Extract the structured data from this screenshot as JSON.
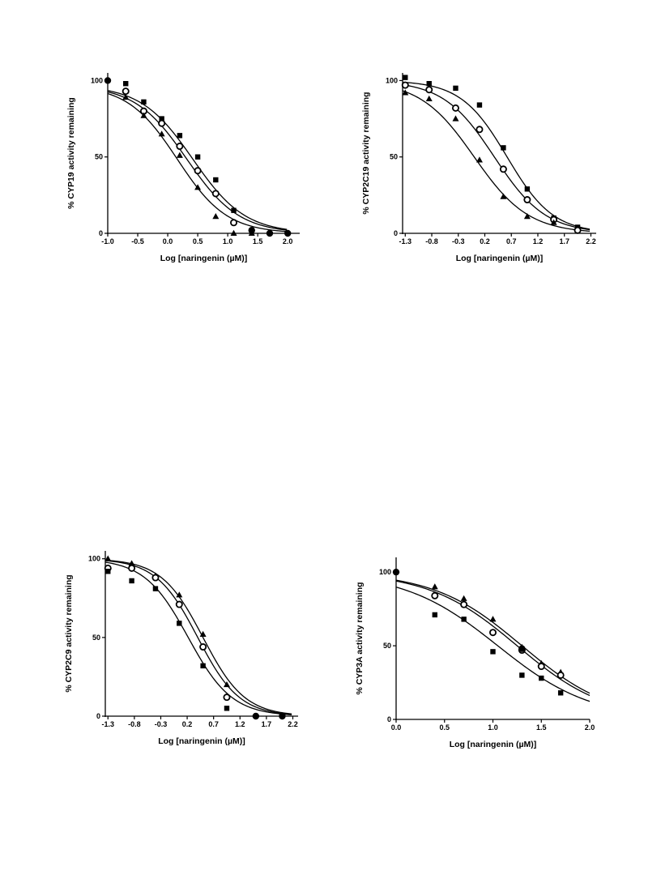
{
  "chart_data": [
    {
      "type": "scatter",
      "title": "",
      "xlabel": "Log [naringenin (µM)]",
      "ylabel": "% CYP19 activity remaining",
      "xlim": [
        -1.0,
        2.2
      ],
      "ylim": [
        0,
        105
      ],
      "xticks": [
        -1.0,
        -0.5,
        0.0,
        0.5,
        1.0,
        1.5,
        2.0
      ],
      "xtick_labels": [
        "-1.0",
        "-0.5",
        "0.0",
        "0.5",
        "1.0",
        "1.5",
        "2.0"
      ],
      "yticks": [
        0,
        50,
        100
      ],
      "ytick_labels": [
        "0",
        "50",
        "100"
      ],
      "grid": false,
      "legend": "none",
      "series": [
        {
          "marker": "square",
          "x": [
            -0.7,
            -0.4,
            -0.1,
            0.2,
            0.5,
            0.8,
            1.1
          ],
          "y": [
            98,
            86,
            75,
            64,
            50,
            35,
            15
          ]
        },
        {
          "marker": "open-circle",
          "x": [
            -0.7,
            -0.4,
            -0.1,
            0.2,
            0.5,
            0.8,
            1.1
          ],
          "y": [
            93,
            80,
            72,
            57,
            41,
            26,
            7
          ]
        },
        {
          "marker": "triangle",
          "x": [
            -0.7,
            -0.4,
            -0.1,
            0.2,
            0.5,
            0.8,
            1.1,
            1.4
          ],
          "y": [
            89,
            77,
            65,
            51,
            30,
            11,
            0,
            0
          ]
        },
        {
          "marker": "filled-circle",
          "x": [
            -1.0,
            1.4,
            1.7,
            2.0
          ],
          "y": [
            100,
            2,
            0,
            0
          ]
        }
      ],
      "fits": [
        {
          "top": 97,
          "logic50": 0.42,
          "hill": 1.0
        },
        {
          "top": 97,
          "logic50": 0.32,
          "hill": 1.0
        },
        {
          "top": 97,
          "logic50": 0.16,
          "hill": 1.05
        }
      ]
    },
    {
      "type": "scatter",
      "title": "",
      "xlabel": "Log [naringenin (µM)]",
      "ylabel": "% CYP2C19 activity remaining",
      "xlim": [
        -1.35,
        2.3
      ],
      "ylim": [
        0,
        105
      ],
      "xticks": [
        -1.3,
        -0.8,
        -0.3,
        0.2,
        0.7,
        1.2,
        1.7,
        2.2
      ],
      "xtick_labels": [
        "-1.3",
        "-0.8",
        "-0.3",
        "0.2",
        "0.7",
        "1.2",
        "1.7",
        "2.2"
      ],
      "yticks": [
        0,
        50,
        100
      ],
      "ytick_labels": [
        "0",
        "50",
        "100"
      ],
      "grid": false,
      "legend": "none",
      "series": [
        {
          "marker": "square",
          "x": [
            -1.3,
            -0.85,
            -0.35,
            0.1,
            0.55,
            1.0,
            1.5,
            1.95
          ],
          "y": [
            102,
            98,
            95,
            84,
            56,
            29,
            10,
            4
          ]
        },
        {
          "marker": "open-circle",
          "x": [
            -1.3,
            -0.85,
            -0.35,
            0.1,
            0.55,
            1.0,
            1.5,
            1.95
          ],
          "y": [
            97,
            94,
            82,
            68,
            42,
            22,
            9,
            2
          ]
        },
        {
          "marker": "triangle",
          "x": [
            -1.3,
            -0.85,
            -0.35,
            0.1,
            0.55,
            1.0,
            1.5
          ],
          "y": [
            92,
            88,
            75,
            48,
            24,
            11,
            7
          ]
        }
      ],
      "fits": [
        {
          "top": 100,
          "logic50": 0.62,
          "hill": 1.0
        },
        {
          "top": 100,
          "logic50": 0.38,
          "hill": 0.9
        },
        {
          "top": 100,
          "logic50": 0.0,
          "hill": 0.85
        }
      ]
    },
    {
      "type": "scatter",
      "title": "",
      "xlabel": "Log [naringenin (µM)]",
      "ylabel": "% CYP2C9 activity remaining",
      "xlim": [
        -1.35,
        2.3
      ],
      "ylim": [
        0,
        105
      ],
      "xticks": [
        -1.3,
        -0.8,
        -0.3,
        0.2,
        0.7,
        1.2,
        1.7,
        2.2
      ],
      "xtick_labels": [
        "-1.3",
        "-0.8",
        "-0.3",
        "0.2",
        "0.7",
        "1.2",
        "1.7",
        "2.2"
      ],
      "yticks": [
        0,
        50,
        100
      ],
      "ytick_labels": [
        "0",
        "50",
        "100"
      ],
      "grid": false,
      "legend": "none",
      "series": [
        {
          "marker": "triangle",
          "x": [
            -1.3,
            -0.85,
            -0.4,
            0.05,
            0.5,
            0.95
          ],
          "y": [
            100,
            97,
            89,
            77,
            52,
            20
          ]
        },
        {
          "marker": "open-circle",
          "x": [
            -1.3,
            -0.85,
            -0.4,
            0.05,
            0.5,
            0.95
          ],
          "y": [
            94,
            94,
            88,
            71,
            44,
            12
          ]
        },
        {
          "marker": "square",
          "x": [
            -1.3,
            -0.85,
            -0.4,
            0.05,
            0.5,
            0.95
          ],
          "y": [
            92,
            86,
            81,
            59,
            32,
            5
          ]
        },
        {
          "marker": "filled-circle",
          "x": [
            1.5,
            2.0
          ],
          "y": [
            0,
            0
          ]
        }
      ],
      "fits": [
        {
          "top": 100,
          "logic50": 0.5,
          "hill": 1.1
        },
        {
          "top": 100,
          "logic50": 0.4,
          "hill": 1.1
        },
        {
          "top": 100,
          "logic50": 0.22,
          "hill": 1.05
        }
      ]
    },
    {
      "type": "scatter",
      "title": "",
      "xlabel": "Log [naringenin (µM)]",
      "ylabel": "% CYP3A activity remaining",
      "xlim": [
        0,
        2.0
      ],
      "ylim": [
        0,
        110
      ],
      "xticks": [
        0.0,
        0.5,
        1.0,
        1.5,
        2.0
      ],
      "xtick_labels": [
        "0.0",
        "0.5",
        "1.0",
        "1.5",
        "2.0"
      ],
      "yticks": [
        0,
        50,
        100
      ],
      "ytick_labels": [
        "0",
        "50",
        "100"
      ],
      "grid": false,
      "legend": "none",
      "series": [
        {
          "marker": "triangle",
          "x": [
            0.4,
            0.7,
            1.0,
            1.3,
            1.5,
            1.7
          ],
          "y": [
            90,
            82,
            68,
            49,
            38,
            32
          ]
        },
        {
          "marker": "open-circle",
          "x": [
            0.4,
            0.7,
            1.0,
            1.3,
            1.5,
            1.7
          ],
          "y": [
            84,
            78,
            59,
            47,
            36,
            30
          ]
        },
        {
          "marker": "square",
          "x": [
            0.4,
            0.7,
            1.0,
            1.3,
            1.5,
            1.7
          ],
          "y": [
            71,
            68,
            46,
            30,
            28,
            18
          ]
        },
        {
          "marker": "filled-circle",
          "x": [
            0.0,
            1.3
          ],
          "y": [
            100,
            48
          ]
        }
      ],
      "fits": [
        {
          "top": 100,
          "logic50": 1.3,
          "hill": 0.95
        },
        {
          "top": 100,
          "logic50": 1.25,
          "hill": 0.95
        },
        {
          "top": 100,
          "logic50": 1.05,
          "hill": 0.9
        }
      ]
    }
  ]
}
